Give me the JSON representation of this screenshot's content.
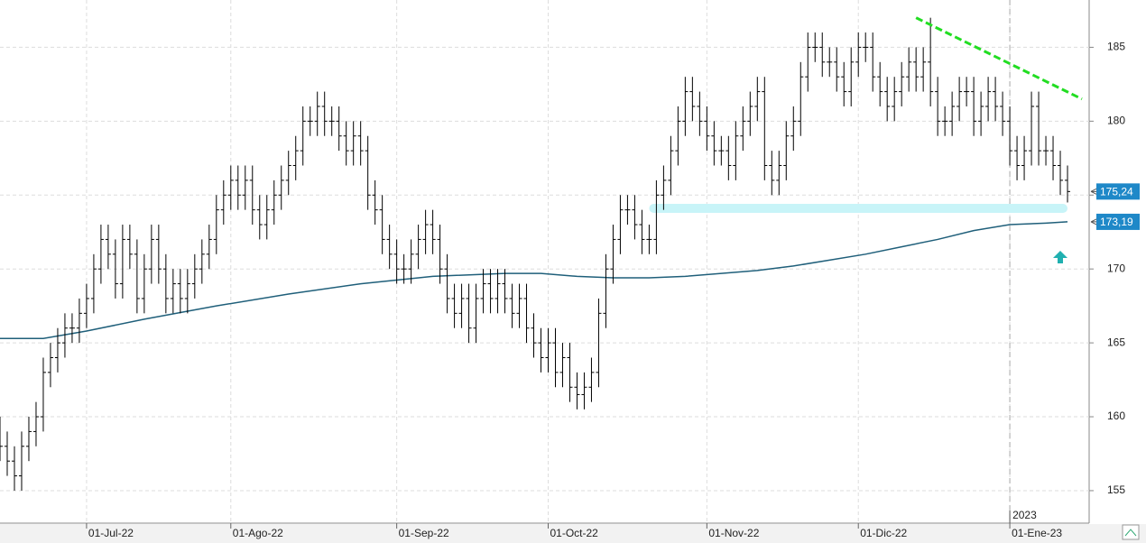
{
  "chart_data": {
    "type": "ohlc",
    "color": "#000000",
    "xlim": [
      0,
      151
    ],
    "ylim": [
      152.8,
      188.2
    ],
    "yticks": [
      155,
      160,
      165,
      170,
      175,
      180,
      185
    ],
    "xticks": [
      {
        "value": 12,
        "label": "01-Jul-22"
      },
      {
        "value": 32,
        "label": "01-Ago-22"
      },
      {
        "value": 55,
        "label": "01-Sep-22"
      },
      {
        "value": 76,
        "label": "01-Oct-22"
      },
      {
        "value": 98,
        "label": "01-Nov-22"
      },
      {
        "value": 119,
        "label": "01-Dic-22"
      },
      {
        "value": 140,
        "label": "01-Ene-23"
      }
    ],
    "grid": true,
    "year_marker": {
      "value": 140,
      "label": "2023"
    },
    "open": [
      159,
      158,
      157,
      156,
      158,
      159,
      160,
      163,
      164,
      165,
      166,
      166,
      167,
      168,
      170,
      172,
      171,
      169,
      172,
      171,
      168,
      170,
      172,
      170,
      168,
      169,
      168,
      169,
      170,
      171,
      172,
      174,
      175,
      176,
      175,
      176,
      174,
      173,
      174,
      175,
      176,
      177,
      178,
      180,
      180,
      181,
      180,
      180,
      179,
      178,
      179,
      178,
      175,
      174,
      172,
      171,
      170,
      170,
      171,
      172,
      173,
      172,
      170,
      168,
      167,
      168,
      166,
      168,
      169,
      168,
      169,
      168,
      167,
      168,
      166,
      165,
      164,
      165,
      163,
      164,
      162,
      161.5,
      162,
      163,
      167,
      170,
      172,
      174,
      174,
      173,
      172,
      172,
      175,
      176,
      178,
      180,
      182,
      181,
      180,
      179,
      178,
      178,
      177,
      179,
      180,
      181,
      182,
      177,
      176,
      177,
      179,
      180,
      183,
      185,
      185,
      184,
      184,
      183,
      182,
      184,
      185,
      185,
      183,
      182,
      181,
      182,
      183,
      184,
      183,
      184,
      182,
      180,
      180,
      181,
      182,
      182,
      180,
      181,
      182,
      181,
      180,
      178,
      177,
      178,
      181,
      178,
      178,
      177,
      176
    ],
    "high": [
      160,
      159,
      158,
      159,
      160,
      161,
      164,
      165,
      166,
      167,
      167,
      168,
      169,
      171,
      173,
      173,
      172,
      173,
      173,
      172,
      171,
      173,
      173,
      171,
      170,
      170,
      170,
      171,
      172,
      173,
      175,
      176,
      177,
      177,
      177,
      177,
      175,
      175,
      176,
      177,
      178,
      179,
      181,
      181,
      182,
      182,
      181,
      181,
      180,
      180,
      180,
      179,
      176,
      175,
      173,
      172,
      171,
      172,
      173,
      174,
      174,
      173,
      171,
      169,
      169,
      169,
      169,
      170,
      170,
      170,
      170,
      169,
      169,
      169,
      167,
      166,
      166,
      166,
      165,
      165,
      163,
      163,
      164,
      168,
      171,
      173,
      175,
      175,
      175,
      174,
      173,
      176,
      177,
      179,
      181,
      183,
      183,
      182,
      181,
      180,
      179,
      179,
      180,
      181,
      182,
      183,
      183,
      178,
      178,
      180,
      181,
      184,
      186,
      186,
      186,
      185,
      185,
      184,
      185,
      186,
      186,
      186,
      184,
      183,
      183,
      184,
      185,
      185,
      185,
      187,
      183,
      181,
      182,
      183,
      183,
      183,
      182,
      183,
      183,
      182,
      181,
      179,
      179,
      182,
      182,
      179,
      179,
      178,
      177
    ],
    "low": [
      157,
      156,
      155,
      155,
      157,
      158,
      159,
      162,
      163,
      164,
      165,
      165,
      166,
      167,
      169,
      170,
      168,
      168,
      170,
      167,
      167,
      169,
      169,
      167,
      167,
      167,
      167,
      168,
      169,
      170,
      171,
      173,
      174,
      174,
      174,
      173,
      172,
      172,
      173,
      174,
      175,
      176,
      177,
      179,
      179,
      179,
      179,
      178,
      177,
      177,
      177,
      174,
      173,
      171,
      170,
      169,
      169,
      169,
      170,
      171,
      171,
      169,
      167,
      166,
      166,
      165,
      165,
      167,
      167,
      167,
      167,
      166,
      166,
      165,
      164,
      163,
      163,
      162,
      162,
      161,
      160.5,
      160.5,
      161,
      162,
      166,
      169,
      171,
      173,
      172,
      171,
      171,
      171,
      174,
      175,
      177,
      179,
      180,
      179,
      178,
      177,
      177,
      176,
      176,
      178,
      179,
      180,
      176,
      175,
      175,
      176,
      178,
      179,
      182,
      184,
      183,
      183,
      182,
      181,
      181,
      183,
      184,
      182,
      181,
      180,
      180,
      181,
      182,
      182,
      182,
      181,
      179,
      179,
      179,
      180,
      181,
      179,
      179,
      180,
      180,
      179,
      177,
      176,
      176,
      177,
      177,
      177,
      176,
      175,
      174.5
    ],
    "close": [
      158,
      157,
      156,
      158,
      159,
      160,
      163,
      164,
      165,
      166,
      166,
      167,
      168,
      170,
      172,
      171,
      169,
      172,
      171,
      168,
      170,
      172,
      170,
      168,
      169,
      168,
      169,
      170,
      171,
      172,
      174,
      175,
      176,
      175,
      176,
      174,
      173,
      174,
      175,
      176,
      177,
      178,
      180,
      180,
      181,
      180,
      180,
      179,
      178,
      179,
      178,
      175,
      174,
      172,
      171,
      170,
      170,
      171,
      172,
      173,
      172,
      170,
      168,
      167,
      168,
      166,
      168,
      169,
      168,
      169,
      168,
      167,
      168,
      166,
      165,
      164,
      165,
      163,
      164,
      162,
      161.5,
      162,
      163,
      167,
      170,
      172,
      174,
      174,
      173,
      172,
      172,
      175,
      176,
      178,
      180,
      182,
      181,
      180,
      179,
      178,
      178,
      177,
      179,
      180,
      181,
      182,
      177,
      176,
      177,
      179,
      180,
      183,
      185,
      185,
      184,
      184,
      183,
      182,
      184,
      185,
      185,
      183,
      182,
      181,
      182,
      183,
      184,
      183,
      184,
      182,
      180,
      180,
      181,
      182,
      182,
      180,
      181,
      182,
      181,
      180,
      178,
      177,
      178,
      181,
      178,
      178,
      177,
      176,
      175.24
    ],
    "moving_average": {
      "color": "#1f5f7a",
      "x": [
        0,
        6,
        12,
        20,
        30,
        40,
        50,
        60,
        70,
        75,
        80,
        85,
        90,
        95,
        100,
        105,
        110,
        115,
        120,
        125,
        130,
        135,
        140,
        145,
        148
      ],
      "values": [
        165.3,
        165.3,
        165.8,
        166.6,
        167.5,
        168.3,
        169.0,
        169.5,
        169.7,
        169.7,
        169.5,
        169.4,
        169.4,
        169.5,
        169.7,
        169.9,
        170.2,
        170.6,
        171.0,
        171.5,
        172.0,
        172.6,
        173.0,
        173.1,
        173.19
      ]
    },
    "trendline": {
      "color": "#22dd22",
      "x": [
        127,
        150
      ],
      "values": [
        187,
        181.5
      ]
    },
    "support_band": {
      "color": "#c8f4f8",
      "x": [
        90,
        148
      ],
      "value": 174.1
    },
    "price_labels": [
      {
        "value": 175.24,
        "label": "175,24"
      },
      {
        "value": 173.19,
        "label": "173,19"
      }
    ],
    "price_label_color": "#1e88c8"
  }
}
